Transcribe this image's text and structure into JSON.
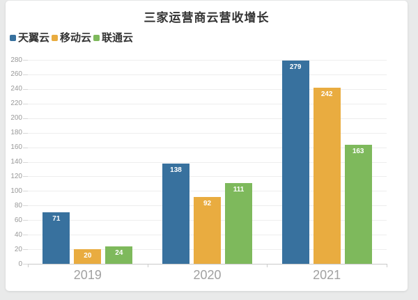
{
  "page": {
    "outer_background": "#e9eaea",
    "card_background": "#ffffff"
  },
  "chart_data": {
    "type": "bar",
    "title": "三家运营商云营收增长",
    "categories": [
      "2019",
      "2020",
      "2021"
    ],
    "series": [
      {
        "name": "天翼云",
        "color": "#38719E",
        "values": [
          71,
          138,
          279
        ]
      },
      {
        "name": "移动云",
        "color": "#E9AC40",
        "values": [
          20,
          92,
          242
        ]
      },
      {
        "name": "联通云",
        "color": "#7EB95C",
        "values": [
          24,
          111,
          163
        ]
      }
    ],
    "ylim": [
      0,
      280
    ],
    "ytick_step": 20,
    "yticks": [
      0,
      20,
      40,
      60,
      80,
      100,
      120,
      140,
      160,
      180,
      200,
      220,
      240,
      260,
      280
    ],
    "grid": true,
    "legend_position": "top-left",
    "value_labels": "inside-top",
    "value_label_color": "#ffffff",
    "axis_text_color": "#999999",
    "x_label_color": "#a1a1a1"
  }
}
